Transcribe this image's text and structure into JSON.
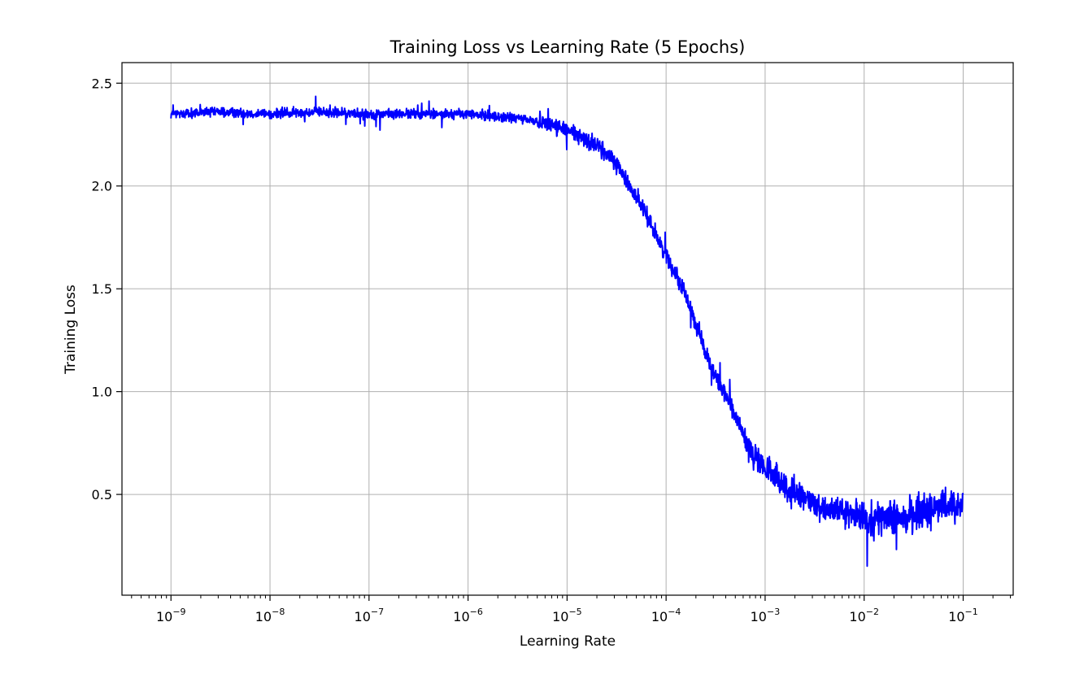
{
  "chart_data": {
    "type": "line",
    "title": "Training Loss vs Learning Rate (5 Epochs)",
    "xlabel": "Learning Rate",
    "ylabel": "Training Loss",
    "xscale": "log",
    "xlim": [
      3.2e-10,
      0.32
    ],
    "ylim": [
      0.01,
      2.6
    ],
    "grid": true,
    "line_color": "#0000ff",
    "x_ticks": [
      {
        "value": 1e-09,
        "base": "10",
        "exp": "−9"
      },
      {
        "value": 1e-08,
        "base": "10",
        "exp": "−8"
      },
      {
        "value": 1e-07,
        "base": "10",
        "exp": "−7"
      },
      {
        "value": 1e-06,
        "base": "10",
        "exp": "−6"
      },
      {
        "value": 1e-05,
        "base": "10",
        "exp": "−5"
      },
      {
        "value": 0.0001,
        "base": "10",
        "exp": "−4"
      },
      {
        "value": 0.001,
        "base": "10",
        "exp": "−3"
      },
      {
        "value": 0.01,
        "base": "10",
        "exp": "−2"
      },
      {
        "value": 0.1,
        "base": "10",
        "exp": "−1"
      }
    ],
    "y_ticks": [
      {
        "value": 0.5,
        "label": "0.5"
      },
      {
        "value": 1.0,
        "label": "1.0"
      },
      {
        "value": 1.5,
        "label": "1.5"
      },
      {
        "value": 2.0,
        "label": "2.0"
      },
      {
        "value": 2.5,
        "label": "2.5"
      }
    ],
    "series": [
      {
        "x": [
          1e-09,
          3e-09,
          1e-08,
          3e-08,
          1e-07,
          3e-07,
          1e-06,
          3e-06,
          6e-06,
          1e-05,
          2e-05,
          3e-05,
          5e-05,
          7e-05,
          0.0001,
          0.00015,
          0.0002,
          0.0003,
          0.0005,
          0.0007,
          0.001,
          0.002,
          0.003,
          0.005,
          0.01,
          0.02,
          0.05,
          0.1
        ],
        "y": [
          2.35,
          2.36,
          2.35,
          2.36,
          2.35,
          2.35,
          2.35,
          2.33,
          2.31,
          2.27,
          2.2,
          2.12,
          1.95,
          1.82,
          1.66,
          1.5,
          1.32,
          1.1,
          0.88,
          0.72,
          0.62,
          0.5,
          0.46,
          0.42,
          0.39,
          0.38,
          0.43,
          0.45
        ]
      }
    ]
  }
}
